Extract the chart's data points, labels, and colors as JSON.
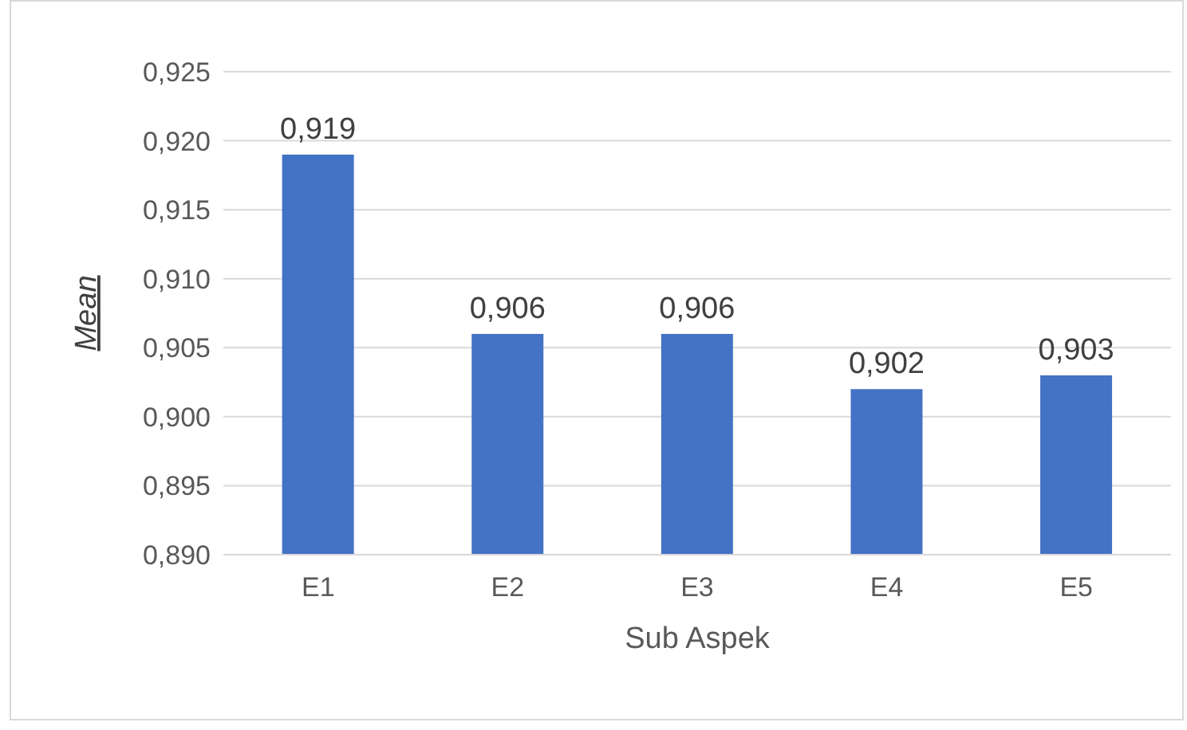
{
  "chart_data": {
    "type": "bar",
    "xlabel": "Sub Aspek",
    "ylabel": "Mean",
    "categories": [
      "E1",
      "E2",
      "E3",
      "E4",
      "E5"
    ],
    "values": [
      0.919,
      0.906,
      0.906,
      0.902,
      0.903
    ],
    "value_labels": [
      "0,919",
      "0,906",
      "0,906",
      "0,902",
      "0,903"
    ],
    "color": "#4472c4",
    "ylim": [
      0.89,
      0.925
    ],
    "yticks": [
      {
        "value": 0.89,
        "label": "0,890"
      },
      {
        "value": 0.895,
        "label": "0,895"
      },
      {
        "value": 0.9,
        "label": "0,900"
      },
      {
        "value": 0.905,
        "label": "0,905"
      },
      {
        "value": 0.91,
        "label": "0,910"
      },
      {
        "value": 0.915,
        "label": "0,915"
      },
      {
        "value": 0.92,
        "label": "0,920"
      },
      {
        "value": 0.925,
        "label": "0,925"
      }
    ],
    "grid": "y",
    "legend": false
  }
}
